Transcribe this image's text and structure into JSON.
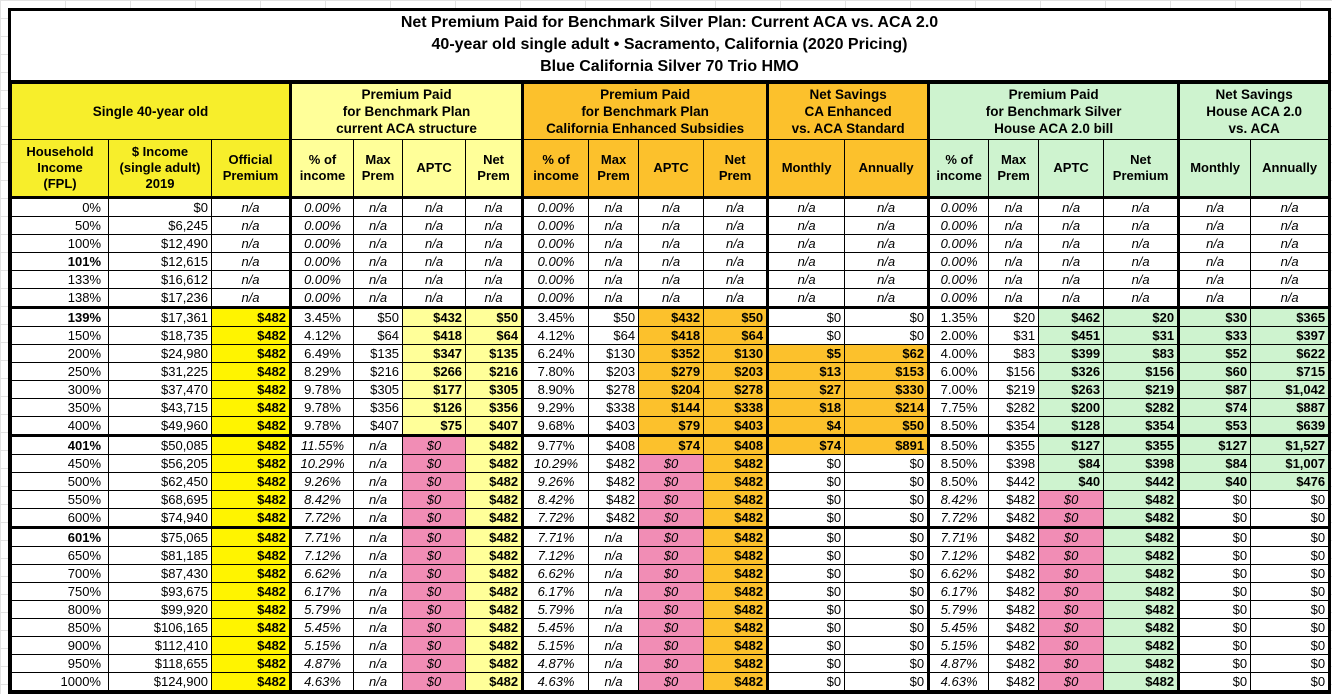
{
  "title": {
    "line1": "Net Premium Paid for Benchmark Silver Plan: Current ACA vs. ACA 2.0",
    "line2": "40-year old single adult • Sacramento, California (2020 Pricing)",
    "line3": "Blue California Silver 70 Trio HMO"
  },
  "sections": {
    "left": {
      "label": "Single 40-year old"
    },
    "aca": {
      "label": "Premium Paid\nfor Benchmark Plan\ncurrent ACA structure"
    },
    "ca": {
      "label": "Premium Paid\nfor Benchmark Plan\nCalifornia Enhanced Subsidies"
    },
    "ca_savings": {
      "label": "Net Savings\nCA Enhanced\nvs. ACA Standard"
    },
    "house": {
      "label": "Premium Paid\nfor Benchmark Silver\nHouse ACA 2.0 bill"
    },
    "house_savings": {
      "label": "Net Savings\nHouse ACA 2.0\nvs. ACA"
    }
  },
  "headers": {
    "fpl": "Household\nIncome\n(FPL)",
    "income": "$ Income\n(single adult)\n2019",
    "premium": "Official\nPremium",
    "pct": "% of\nincome",
    "max": "Max\nPrem",
    "aptc": "APTC",
    "net": "Net\nPrem",
    "net_premium": "Net\nPremium",
    "monthly": "Monthly",
    "annually": "Annually"
  },
  "colors": {
    "header_yellow": "#F7EE2B",
    "cell_yellow": "#FFF400",
    "pale_yellow": "#FFFF99",
    "orange": "#FCC12C",
    "green": "#CEF3CF",
    "pink": "#F18DB5",
    "border": "#000000"
  },
  "rows": [
    {
      "fpl": "0%",
      "income": "$0",
      "premium": "n/a",
      "aca": [
        "0.00%",
        "n/a",
        "n/a",
        "n/a"
      ],
      "ca": [
        "0.00%",
        "n/a",
        "n/a",
        "n/a"
      ],
      "ca_sav": [
        "n/a",
        "n/a"
      ],
      "house": [
        "0.00%",
        "n/a",
        "n/a",
        "n/a"
      ],
      "house_sav": [
        "n/a",
        "n/a"
      ]
    },
    {
      "fpl": "50%",
      "income": "$6,245",
      "premium": "n/a",
      "aca": [
        "0.00%",
        "n/a",
        "n/a",
        "n/a"
      ],
      "ca": [
        "0.00%",
        "n/a",
        "n/a",
        "n/a"
      ],
      "ca_sav": [
        "n/a",
        "n/a"
      ],
      "house": [
        "0.00%",
        "n/a",
        "n/a",
        "n/a"
      ],
      "house_sav": [
        "n/a",
        "n/a"
      ]
    },
    {
      "fpl": "100%",
      "income": "$12,490",
      "premium": "n/a",
      "aca": [
        "0.00%",
        "n/a",
        "n/a",
        "n/a"
      ],
      "ca": [
        "0.00%",
        "n/a",
        "n/a",
        "n/a"
      ],
      "ca_sav": [
        "n/a",
        "n/a"
      ],
      "house": [
        "0.00%",
        "n/a",
        "n/a",
        "n/a"
      ],
      "house_sav": [
        "n/a",
        "n/a"
      ]
    },
    {
      "fpl": "101%",
      "income": "$12,615",
      "premium": "n/a",
      "aca": [
        "0.00%",
        "n/a",
        "n/a",
        "n/a"
      ],
      "ca": [
        "0.00%",
        "n/a",
        "n/a",
        "n/a"
      ],
      "ca_sav": [
        "n/a",
        "n/a"
      ],
      "house": [
        "0.00%",
        "n/a",
        "n/a",
        "n/a"
      ],
      "house_sav": [
        "n/a",
        "n/a"
      ]
    },
    {
      "fpl": "133%",
      "income": "$16,612",
      "premium": "n/a",
      "aca": [
        "0.00%",
        "n/a",
        "n/a",
        "n/a"
      ],
      "ca": [
        "0.00%",
        "n/a",
        "n/a",
        "n/a"
      ],
      "ca_sav": [
        "n/a",
        "n/a"
      ],
      "house": [
        "0.00%",
        "n/a",
        "n/a",
        "n/a"
      ],
      "house_sav": [
        "n/a",
        "n/a"
      ]
    },
    {
      "fpl": "138%",
      "income": "$17,236",
      "premium": "n/a",
      "aca": [
        "0.00%",
        "n/a",
        "n/a",
        "n/a"
      ],
      "ca": [
        "0.00%",
        "n/a",
        "n/a",
        "n/a"
      ],
      "ca_sav": [
        "n/a",
        "n/a"
      ],
      "house": [
        "0.00%",
        "n/a",
        "n/a",
        "n/a"
      ],
      "house_sav": [
        "n/a",
        "n/a"
      ]
    },
    {
      "fpl": "139%",
      "income": "$17,361",
      "premium": "$482",
      "aca": [
        "3.45%",
        "$50",
        "$432",
        "$50"
      ],
      "ca": [
        "3.45%",
        "$50",
        "$432",
        "$50"
      ],
      "ca_sav": [
        "$0",
        "$0"
      ],
      "house": [
        "1.35%",
        "$20",
        "$462",
        "$20"
      ],
      "house_sav": [
        "$30",
        "$365"
      ]
    },
    {
      "fpl": "150%",
      "income": "$18,735",
      "premium": "$482",
      "aca": [
        "4.12%",
        "$64",
        "$418",
        "$64"
      ],
      "ca": [
        "4.12%",
        "$64",
        "$418",
        "$64"
      ],
      "ca_sav": [
        "$0",
        "$0"
      ],
      "house": [
        "2.00%",
        "$31",
        "$451",
        "$31"
      ],
      "house_sav": [
        "$33",
        "$397"
      ]
    },
    {
      "fpl": "200%",
      "income": "$24,980",
      "premium": "$482",
      "aca": [
        "6.49%",
        "$135",
        "$347",
        "$135"
      ],
      "ca": [
        "6.24%",
        "$130",
        "$352",
        "$130"
      ],
      "ca_sav": [
        "$5",
        "$62"
      ],
      "house": [
        "4.00%",
        "$83",
        "$399",
        "$83"
      ],
      "house_sav": [
        "$52",
        "$622"
      ]
    },
    {
      "fpl": "250%",
      "income": "$31,225",
      "premium": "$482",
      "aca": [
        "8.29%",
        "$216",
        "$266",
        "$216"
      ],
      "ca": [
        "7.80%",
        "$203",
        "$279",
        "$203"
      ],
      "ca_sav": [
        "$13",
        "$153"
      ],
      "house": [
        "6.00%",
        "$156",
        "$326",
        "$156"
      ],
      "house_sav": [
        "$60",
        "$715"
      ]
    },
    {
      "fpl": "300%",
      "income": "$37,470",
      "premium": "$482",
      "aca": [
        "9.78%",
        "$305",
        "$177",
        "$305"
      ],
      "ca": [
        "8.90%",
        "$278",
        "$204",
        "$278"
      ],
      "ca_sav": [
        "$27",
        "$330"
      ],
      "house": [
        "7.00%",
        "$219",
        "$263",
        "$219"
      ],
      "house_sav": [
        "$87",
        "$1,042"
      ]
    },
    {
      "fpl": "350%",
      "income": "$43,715",
      "premium": "$482",
      "aca": [
        "9.78%",
        "$356",
        "$126",
        "$356"
      ],
      "ca": [
        "9.29%",
        "$338",
        "$144",
        "$338"
      ],
      "ca_sav": [
        "$18",
        "$214"
      ],
      "house": [
        "7.75%",
        "$282",
        "$200",
        "$282"
      ],
      "house_sav": [
        "$74",
        "$887"
      ]
    },
    {
      "fpl": "400%",
      "income": "$49,960",
      "premium": "$482",
      "aca": [
        "9.78%",
        "$407",
        "$75",
        "$407"
      ],
      "ca": [
        "9.68%",
        "$403",
        "$79",
        "$403"
      ],
      "ca_sav": [
        "$4",
        "$50"
      ],
      "house": [
        "8.50%",
        "$354",
        "$128",
        "$354"
      ],
      "house_sav": [
        "$53",
        "$639"
      ]
    },
    {
      "fpl": "401%",
      "income": "$50,085",
      "premium": "$482",
      "aca": [
        "11.55%",
        "n/a",
        "$0",
        "$482"
      ],
      "ca": [
        "9.77%",
        "$408",
        "$74",
        "$408"
      ],
      "ca_sav": [
        "$74",
        "$891"
      ],
      "house": [
        "8.50%",
        "$355",
        "$127",
        "$355"
      ],
      "house_sav": [
        "$127",
        "$1,527"
      ]
    },
    {
      "fpl": "450%",
      "income": "$56,205",
      "premium": "$482",
      "aca": [
        "10.29%",
        "n/a",
        "$0",
        "$482"
      ],
      "ca": [
        "10.29%",
        "$482",
        "$0",
        "$482"
      ],
      "ca_sav": [
        "$0",
        "$0"
      ],
      "house": [
        "8.50%",
        "$398",
        "$84",
        "$398"
      ],
      "house_sav": [
        "$84",
        "$1,007"
      ]
    },
    {
      "fpl": "500%",
      "income": "$62,450",
      "premium": "$482",
      "aca": [
        "9.26%",
        "n/a",
        "$0",
        "$482"
      ],
      "ca": [
        "9.26%",
        "$482",
        "$0",
        "$482"
      ],
      "ca_sav": [
        "$0",
        "$0"
      ],
      "house": [
        "8.50%",
        "$442",
        "$40",
        "$442"
      ],
      "house_sav": [
        "$40",
        "$476"
      ]
    },
    {
      "fpl": "550%",
      "income": "$68,695",
      "premium": "$482",
      "aca": [
        "8.42%",
        "n/a",
        "$0",
        "$482"
      ],
      "ca": [
        "8.42%",
        "$482",
        "$0",
        "$482"
      ],
      "ca_sav": [
        "$0",
        "$0"
      ],
      "house": [
        "8.42%",
        "$482",
        "$0",
        "$482"
      ],
      "house_sav": [
        "$0",
        "$0"
      ]
    },
    {
      "fpl": "600%",
      "income": "$74,940",
      "premium": "$482",
      "aca": [
        "7.72%",
        "n/a",
        "$0",
        "$482"
      ],
      "ca": [
        "7.72%",
        "$482",
        "$0",
        "$482"
      ],
      "ca_sav": [
        "$0",
        "$0"
      ],
      "house": [
        "7.72%",
        "$482",
        "$0",
        "$482"
      ],
      "house_sav": [
        "$0",
        "$0"
      ]
    },
    {
      "fpl": "601%",
      "income": "$75,065",
      "premium": "$482",
      "aca": [
        "7.71%",
        "n/a",
        "$0",
        "$482"
      ],
      "ca": [
        "7.71%",
        "n/a",
        "$0",
        "$482"
      ],
      "ca_sav": [
        "$0",
        "$0"
      ],
      "house": [
        "7.71%",
        "$482",
        "$0",
        "$482"
      ],
      "house_sav": [
        "$0",
        "$0"
      ]
    },
    {
      "fpl": "650%",
      "income": "$81,185",
      "premium": "$482",
      "aca": [
        "7.12%",
        "n/a",
        "$0",
        "$482"
      ],
      "ca": [
        "7.12%",
        "n/a",
        "$0",
        "$482"
      ],
      "ca_sav": [
        "$0",
        "$0"
      ],
      "house": [
        "7.12%",
        "$482",
        "$0",
        "$482"
      ],
      "house_sav": [
        "$0",
        "$0"
      ]
    },
    {
      "fpl": "700%",
      "income": "$87,430",
      "premium": "$482",
      "aca": [
        "6.62%",
        "n/a",
        "$0",
        "$482"
      ],
      "ca": [
        "6.62%",
        "n/a",
        "$0",
        "$482"
      ],
      "ca_sav": [
        "$0",
        "$0"
      ],
      "house": [
        "6.62%",
        "$482",
        "$0",
        "$482"
      ],
      "house_sav": [
        "$0",
        "$0"
      ]
    },
    {
      "fpl": "750%",
      "income": "$93,675",
      "premium": "$482",
      "aca": [
        "6.17%",
        "n/a",
        "$0",
        "$482"
      ],
      "ca": [
        "6.17%",
        "n/a",
        "$0",
        "$482"
      ],
      "ca_sav": [
        "$0",
        "$0"
      ],
      "house": [
        "6.17%",
        "$482",
        "$0",
        "$482"
      ],
      "house_sav": [
        "$0",
        "$0"
      ]
    },
    {
      "fpl": "800%",
      "income": "$99,920",
      "premium": "$482",
      "aca": [
        "5.79%",
        "n/a",
        "$0",
        "$482"
      ],
      "ca": [
        "5.79%",
        "n/a",
        "$0",
        "$482"
      ],
      "ca_sav": [
        "$0",
        "$0"
      ],
      "house": [
        "5.79%",
        "$482",
        "$0",
        "$482"
      ],
      "house_sav": [
        "$0",
        "$0"
      ]
    },
    {
      "fpl": "850%",
      "income": "$106,165",
      "premium": "$482",
      "aca": [
        "5.45%",
        "n/a",
        "$0",
        "$482"
      ],
      "ca": [
        "5.45%",
        "n/a",
        "$0",
        "$482"
      ],
      "ca_sav": [
        "$0",
        "$0"
      ],
      "house": [
        "5.45%",
        "$482",
        "$0",
        "$482"
      ],
      "house_sav": [
        "$0",
        "$0"
      ]
    },
    {
      "fpl": "900%",
      "income": "$112,410",
      "premium": "$482",
      "aca": [
        "5.15%",
        "n/a",
        "$0",
        "$482"
      ],
      "ca": [
        "5.15%",
        "n/a",
        "$0",
        "$482"
      ],
      "ca_sav": [
        "$0",
        "$0"
      ],
      "house": [
        "5.15%",
        "$482",
        "$0",
        "$482"
      ],
      "house_sav": [
        "$0",
        "$0"
      ]
    },
    {
      "fpl": "950%",
      "income": "$118,655",
      "premium": "$482",
      "aca": [
        "4.87%",
        "n/a",
        "$0",
        "$482"
      ],
      "ca": [
        "4.87%",
        "n/a",
        "$0",
        "$482"
      ],
      "ca_sav": [
        "$0",
        "$0"
      ],
      "house": [
        "4.87%",
        "$482",
        "$0",
        "$482"
      ],
      "house_sav": [
        "$0",
        "$0"
      ]
    },
    {
      "fpl": "1000%",
      "income": "$124,900",
      "premium": "$482",
      "aca": [
        "4.63%",
        "n/a",
        "$0",
        "$482"
      ],
      "ca": [
        "4.63%",
        "n/a",
        "$0",
        "$482"
      ],
      "ca_sav": [
        "$0",
        "$0"
      ],
      "house": [
        "4.63%",
        "$482",
        "$0",
        "$482"
      ],
      "house_sav": [
        "$0",
        "$0"
      ]
    }
  ],
  "bold_fpl_rows": [
    "101%",
    "139%",
    "401%",
    "601%"
  ]
}
